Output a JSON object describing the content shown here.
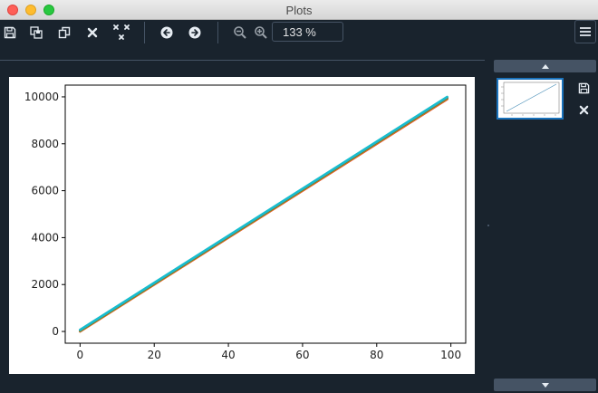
{
  "window": {
    "title": "Plots"
  },
  "toolbar": {
    "buttons": [
      "save-icon",
      "save-all-icon",
      "copy-icon",
      "close-icon",
      "close-all-icon",
      "previous-icon",
      "next-icon",
      "zoom-out-icon",
      "zoom-in-icon"
    ],
    "zoom_value": "133 %",
    "menu": "menu-icon"
  },
  "thumbnail_panel": {
    "actions": [
      "save-icon",
      "close-icon"
    ],
    "scroll": [
      "chevron-up-icon",
      "chevron-down-icon"
    ]
  },
  "chart_data": {
    "type": "line",
    "title": "",
    "xlabel": "",
    "ylabel": "",
    "xlim": [
      -4,
      104
    ],
    "ylim": [
      -500,
      10500
    ],
    "xticks": [
      0,
      20,
      40,
      60,
      80,
      100
    ],
    "yticks": [
      0,
      2000,
      4000,
      6000,
      8000,
      10000
    ],
    "xtick_labels": [
      "0",
      "20",
      "40",
      "60",
      "80",
      "100"
    ],
    "ytick_labels": [
      "0",
      "2000",
      "4000",
      "6000",
      "8000",
      "10000"
    ],
    "grid": false,
    "series": [
      {
        "color": "#d62728",
        "x": [
          0,
          99
        ],
        "y": [
          0,
          9900
        ]
      },
      {
        "color": "#ff7f0e",
        "x": [
          0,
          99
        ],
        "y": [
          10,
          9920
        ]
      },
      {
        "color": "#2ca02c",
        "x": [
          0,
          99
        ],
        "y": [
          30,
          9950
        ]
      },
      {
        "color": "#8c564b",
        "x": [
          0,
          99
        ],
        "y": [
          50,
          9970
        ]
      },
      {
        "color": "#7f7f7f",
        "x": [
          0,
          99
        ],
        "y": [
          60,
          9985
        ]
      },
      {
        "color": "#17becf",
        "x": [
          0,
          99
        ],
        "y": [
          70,
          10000
        ]
      }
    ]
  }
}
